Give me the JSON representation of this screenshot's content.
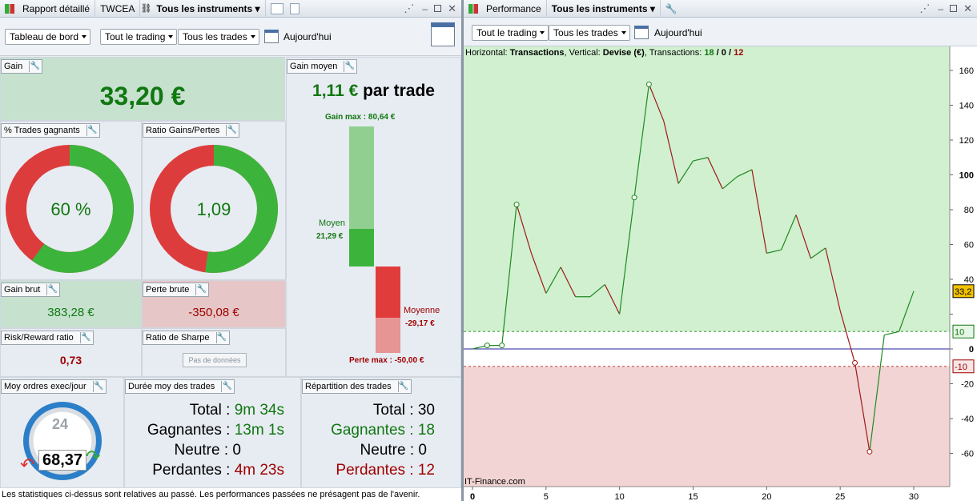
{
  "left_panel": {
    "tabs": [
      "Rapport détaillé",
      "TWCEA",
      "Tous les instruments"
    ],
    "toolbar": {
      "dashboard": "Tableau de bord",
      "trading": "Tout le trading",
      "trades": "Tous les trades",
      "date": "Aujourd'hui"
    },
    "gain": {
      "label": "Gain",
      "value": "33,20 €"
    },
    "gain_moyen": {
      "label": "Gain moyen",
      "value": "1,11 €",
      "suffix": " par trade",
      "max_label": "Gain max :",
      "max_value": "80,64 €",
      "moyen_label": "Moyen",
      "moyen_value": "21,29 €",
      "moyenne_label": "Moyenne",
      "moyenne_value": "-29,17 €",
      "perte_max_label": "Perte max :",
      "perte_max_value": "-50,00 €"
    },
    "pct_gagnants": {
      "label": "% Trades gagnants",
      "value": "60 %",
      "fraction": 0.6
    },
    "ratio_gp": {
      "label": "Ratio Gains/Pertes",
      "value": "1,09",
      "fraction": 0.5215
    },
    "gain_brut": {
      "label": "Gain brut",
      "value": "383,28 €"
    },
    "perte_brute": {
      "label": "Perte brute",
      "value": "-350,08 €"
    },
    "risk_reward": {
      "label": "Risk/Reward ratio",
      "value": "0,73"
    },
    "sharpe": {
      "label": "Ratio de Sharpe",
      "button": "Pas de données"
    },
    "ordres": {
      "label": "Moy ordres exec/jour",
      "value": "68,37",
      "dial": "24"
    },
    "duree": {
      "label": "Durée moy des trades",
      "total": "Total : 9m 34s",
      "total_k": "Total : ",
      "total_v": "9m 34s",
      "gagnantes_k": "Gagnantes : ",
      "gagnantes_v": "13m 1s",
      "neutre_k": "Neutre : ",
      "neutre_v": "0",
      "perdantes_k": "Perdantes : ",
      "perdantes_v": "4m 23s"
    },
    "repartition": {
      "label": "Répartition des trades",
      "total_k": "Total : ",
      "total_v": "30",
      "gagnantes_k": "Gagnantes : ",
      "gagnantes_v": "18",
      "neutre_k": "Neutre : ",
      "neutre_v": "0",
      "perdantes_k": "Perdantes : ",
      "perdantes_v": "12"
    },
    "status": "Les statistiques ci-dessus sont relatives au passé. Les performances passées ne présagent pas de l'avenir."
  },
  "right_panel": {
    "tabs": [
      "Performance",
      "Tous les instruments"
    ],
    "toolbar": {
      "trading": "Tout le trading",
      "trades": "Tous les trades",
      "date": "Aujourd'hui"
    },
    "info": {
      "h": "Horizontal: ",
      "h_v": "Transactions",
      "v": ", Vertical: ",
      "v_v": "Devise (€)",
      "t": ", Transactions: ",
      "win": "18",
      "sep1": " / ",
      "neutral": "0",
      "sep2": " / ",
      "loss": "12"
    },
    "credit": "IT-Finance.com",
    "last_value": "33,2",
    "band_upper": "10",
    "band_lower": "-10"
  },
  "colors": {
    "green": "#117711",
    "red": "#a00000",
    "gain_bg": "#c6e2cf",
    "loss_bg": "#e6c6c6"
  },
  "chart_data": {
    "type": "line",
    "x": [
      0,
      1,
      2,
      3,
      4,
      5,
      6,
      7,
      8,
      9,
      10,
      11,
      12,
      13,
      14,
      15,
      16,
      17,
      18,
      19,
      20,
      21,
      22,
      23,
      24,
      25,
      26,
      27,
      28,
      29,
      30
    ],
    "values": [
      0,
      2,
      2,
      83,
      55,
      32,
      47,
      30,
      30,
      37,
      20,
      87,
      152,
      131,
      95,
      108,
      110,
      92,
      99,
      103,
      55,
      57,
      77,
      52,
      58,
      22,
      -8,
      -59,
      8,
      10,
      33.2
    ],
    "xlim": [
      0,
      33
    ],
    "ylim": [
      -72,
      172
    ],
    "xticks": [
      0,
      5,
      10,
      15,
      20,
      25,
      30
    ],
    "yticks": [
      -60,
      -40,
      -20,
      0,
      20,
      40,
      60,
      80,
      100,
      120,
      140,
      160
    ],
    "ytick_labels": [
      "-60",
      "-40",
      "-20",
      "0",
      "",
      "40",
      "60",
      "80",
      "100",
      "120",
      "140",
      "160"
    ],
    "bands": [
      10,
      -10
    ],
    "circle_markers_at": [
      1,
      2,
      3,
      11,
      12,
      26,
      27
    ]
  }
}
